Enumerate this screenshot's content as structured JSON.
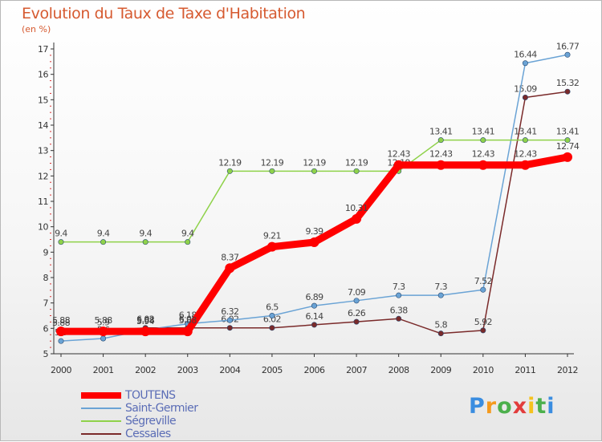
{
  "title": "Evolution du Taux de Taxe d'Habitation",
  "subtitle": "(en %)",
  "chart_data": {
    "type": "line",
    "title": "Evolution du Taux de Taxe d'Habitation",
    "ylabel": "(en %)",
    "xlabel": "",
    "x": [
      "2000",
      "2001",
      "2002",
      "2003",
      "2004",
      "2005",
      "2006",
      "2007",
      "2008",
      "2009",
      "2010",
      "2011",
      "2012"
    ],
    "ylim": [
      5,
      17
    ],
    "yticks": [
      "5",
      "6",
      "7",
      "8",
      "9",
      "10",
      "11",
      "12",
      "13",
      "14",
      "15",
      "16",
      "17"
    ],
    "grid": false,
    "legend_position": "bottom-left",
    "series": [
      {
        "name": "TOUTENS",
        "color": "#ff0000",
        "values": [
          5.88,
          5.88,
          5.88,
          5.88,
          8.37,
          9.21,
          9.39,
          10.31,
          12.43,
          12.43,
          12.43,
          12.43,
          12.74
        ],
        "labels": [
          "5.88",
          "5.88",
          "5.88",
          "5.88",
          "8.37",
          "9.21",
          "9.39",
          "10.31",
          "12.43",
          "12.43",
          "12.43",
          "12.43",
          "12.74"
        ]
      },
      {
        "name": "Saint-Germier",
        "color": "#6aa3d5",
        "values": [
          5.5,
          5.6,
          5.94,
          6.18,
          6.32,
          6.5,
          6.89,
          7.09,
          7.3,
          7.3,
          7.52,
          16.44,
          16.77
        ],
        "labels": [
          "5.5",
          "5.6",
          "5.94",
          "6.18",
          "6.32",
          "6.5",
          "6.89",
          "7.09",
          "7.3",
          "7.3",
          "7.52",
          "16.44",
          "16.77"
        ]
      },
      {
        "name": "Ségreville",
        "color": "#8fd24a",
        "values": [
          9.4,
          9.4,
          9.4,
          9.4,
          12.19,
          12.19,
          12.19,
          12.19,
          12.19,
          13.41,
          13.41,
          13.41,
          13.41
        ],
        "labels": [
          "9.4",
          "9.4",
          "9.4",
          "9.4",
          "12.19",
          "12.19",
          "12.19",
          "12.19",
          "12.19",
          "13.41",
          "13.41",
          "13.41",
          "13.41"
        ]
      },
      {
        "name": "Cessales",
        "color": "#7a2a2a",
        "values": [
          5.88,
          5.9,
          6.02,
          6.02,
          6.02,
          6.02,
          6.14,
          6.26,
          6.38,
          5.8,
          5.92,
          15.09,
          15.32
        ],
        "labels": [
          "5.88",
          "5.9",
          "6.02",
          "6.02",
          "6.02",
          "6.02",
          "6.14",
          "6.26",
          "6.38",
          "5.8",
          "5.92",
          "15.09",
          "15.32"
        ]
      }
    ]
  },
  "legend": [
    {
      "label": "TOUTENS",
      "color": "#ff0000",
      "width": 8
    },
    {
      "label": "Saint-Germier",
      "color": "#6aa3d5",
      "width": 2
    },
    {
      "label": "Ségreville",
      "color": "#8fd24a",
      "width": 2
    },
    {
      "label": "Cessales",
      "color": "#7a2a2a",
      "width": 2
    }
  ],
  "logo": {
    "letters": [
      "P",
      "r",
      "o",
      "x",
      "i",
      "t",
      "i"
    ],
    "colors": [
      "#3a8de0",
      "#f59a1e",
      "#4cb04c",
      "#e23c3c",
      "#f5c21e",
      "#4cb04c",
      "#3a8de0"
    ]
  }
}
